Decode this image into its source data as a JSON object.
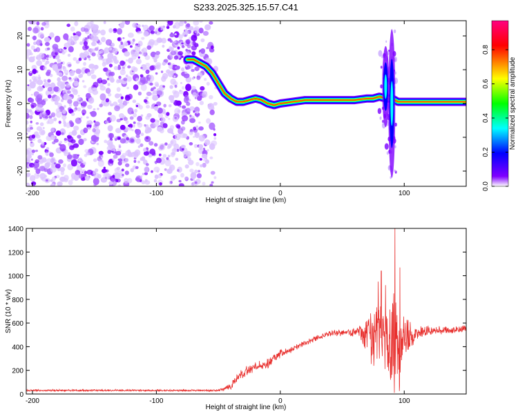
{
  "title": "S233.2025.325.15.57.C41",
  "chart_data": [
    {
      "type": "heatmap",
      "xlabel": "Height of straight line (km)",
      "ylabel": "Frequency (Hz)",
      "xlim": [
        -205,
        150
      ],
      "ylim": [
        -24.5,
        24.5
      ],
      "xticks": [
        -200,
        -100,
        0,
        100
      ],
      "yticks": [
        -20,
        -10,
        0,
        10,
        20
      ],
      "colorbar": {
        "label": "Normalized spectral amplitude",
        "range": [
          0,
          0.97
        ],
        "ticks": [
          0.0,
          0.2,
          0.4,
          0.6,
          0.8
        ],
        "tick_labels": [
          "0.0",
          "0.2",
          "0.4",
          "0.6",
          "0.8"
        ],
        "colors": [
          "#ffffff",
          "#8000ff",
          "#0000ff",
          "#00ffff",
          "#00ff00",
          "#ffff00",
          "#ff0000",
          "#ff0080"
        ]
      },
      "noise_region_x": [
        -205,
        -52
      ],
      "ridge": {
        "x": [
          -75,
          -70,
          -65,
          -60,
          -55,
          -50,
          -45,
          -40,
          -35,
          -30,
          -25,
          -20,
          -15,
          -10,
          -5,
          0,
          10,
          20,
          40,
          60,
          70,
          75,
          80,
          85,
          90,
          95,
          100,
          120,
          140,
          150
        ],
        "y": [
          13,
          13,
          12,
          11,
          9,
          6,
          3,
          1.5,
          0.5,
          0.5,
          1,
          1.5,
          1,
          0,
          -0.5,
          0,
          0.5,
          1,
          1,
          1,
          1.5,
          1.5,
          2,
          1.5,
          1.5,
          0.5,
          0.5,
          0.5,
          0.5,
          0.5
        ]
      },
      "bursts": [
        {
          "x": 85,
          "y": 5,
          "spread": 12
        },
        {
          "x": 90,
          "y": 0,
          "spread": 22
        }
      ]
    },
    {
      "type": "line",
      "xlabel": "Height of straight line (km)",
      "ylabel": "SNR (10 * v/v)",
      "xlim": [
        -205,
        150
      ],
      "ylim": [
        0,
        1400
      ],
      "xticks": [
        -200,
        -100,
        0,
        100
      ],
      "yticks": [
        0,
        200,
        400,
        600,
        800,
        1000,
        1200,
        1400
      ],
      "line_color": "#e8302e",
      "envelope": {
        "x": [
          -205,
          -50,
          -40,
          -35,
          -30,
          -20,
          -10,
          0,
          10,
          20,
          30,
          40,
          50,
          60,
          65,
          70,
          75,
          80,
          85,
          90,
          93,
          95,
          100,
          105,
          110,
          120,
          130,
          140,
          150
        ],
        "mean": [
          30,
          30,
          60,
          140,
          180,
          230,
          260,
          340,
          380,
          430,
          480,
          510,
          520,
          520,
          510,
          500,
          480,
          470,
          480,
          480,
          450,
          420,
          450,
          500,
          520,
          530,
          540,
          545,
          550
        ],
        "amplitude": [
          10,
          10,
          30,
          40,
          50,
          40,
          50,
          40,
          30,
          30,
          30,
          30,
          30,
          50,
          80,
          200,
          320,
          400,
          420,
          500,
          600,
          420,
          350,
          150,
          80,
          50,
          40,
          40,
          40
        ]
      },
      "peaks": [
        {
          "x": 92.5,
          "y": 1400
        },
        {
          "x": 96.5,
          "y": 1070
        },
        {
          "x": 81.5,
          "y": 1040
        },
        {
          "x": 79,
          "y": 950
        },
        {
          "x": 85,
          "y": 920
        }
      ],
      "minima": [
        {
          "x": 92,
          "y": 10
        },
        {
          "x": 96,
          "y": 25
        },
        {
          "x": 89,
          "y": 120
        }
      ]
    }
  ]
}
